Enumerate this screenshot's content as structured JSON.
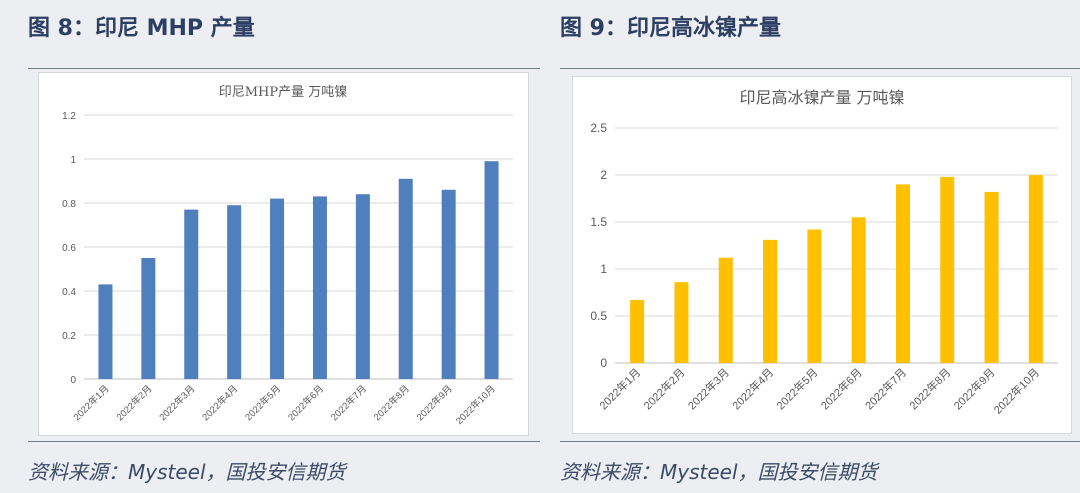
{
  "figures": [
    {
      "heading": "图 8：印尼 MHP 产量",
      "source": "资料来源：Mysteel，国投安信期货",
      "colors": {
        "bar": "#4f7fbd",
        "grid": "#d9d9d9",
        "axis": "#bfbfbf"
      }
    },
    {
      "heading": "图 9：印尼高冰镍产量",
      "source": "资料来源：Mysteel，国投安信期货",
      "colors": {
        "bar": "#ffc000",
        "grid": "#d9d9d9",
        "axis": "#bfbfbf"
      }
    }
  ],
  "chart_data": [
    {
      "type": "bar",
      "title": "印尼MHP产量  万吨镍",
      "xlabel": "",
      "ylabel": "",
      "categories": [
        "2022年1月",
        "2022年2月",
        "2022年3月",
        "2022年4月",
        "2022年5月",
        "2022年6月",
        "2022年7月",
        "2022年8月",
        "2022年9月",
        "2022年10月"
      ],
      "values": [
        0.43,
        0.55,
        0.77,
        0.79,
        0.82,
        0.83,
        0.84,
        0.91,
        0.86,
        0.99
      ],
      "ylim": [
        0,
        1.2
      ],
      "yticks": [
        "0",
        "0.2",
        "0.4",
        "0.6",
        "0.8",
        "1",
        "1.2"
      ],
      "grid": true,
      "legend": "none"
    },
    {
      "type": "bar",
      "title": "印尼高冰镍产量  万吨镍",
      "xlabel": "",
      "ylabel": "",
      "categories": [
        "2022年1月",
        "2022年2月",
        "2022年3月",
        "2022年4月",
        "2022年5月",
        "2022年6月",
        "2022年7月",
        "2022年8月",
        "2022年9月",
        "2022年10月"
      ],
      "values": [
        0.67,
        0.86,
        1.12,
        1.31,
        1.42,
        1.55,
        1.9,
        1.98,
        1.82,
        2.0
      ],
      "ylim": [
        0,
        2.5
      ],
      "yticks": [
        "0",
        "0.5",
        "1",
        "1.5",
        "2",
        "2.5"
      ],
      "grid": true,
      "legend": "none"
    }
  ]
}
